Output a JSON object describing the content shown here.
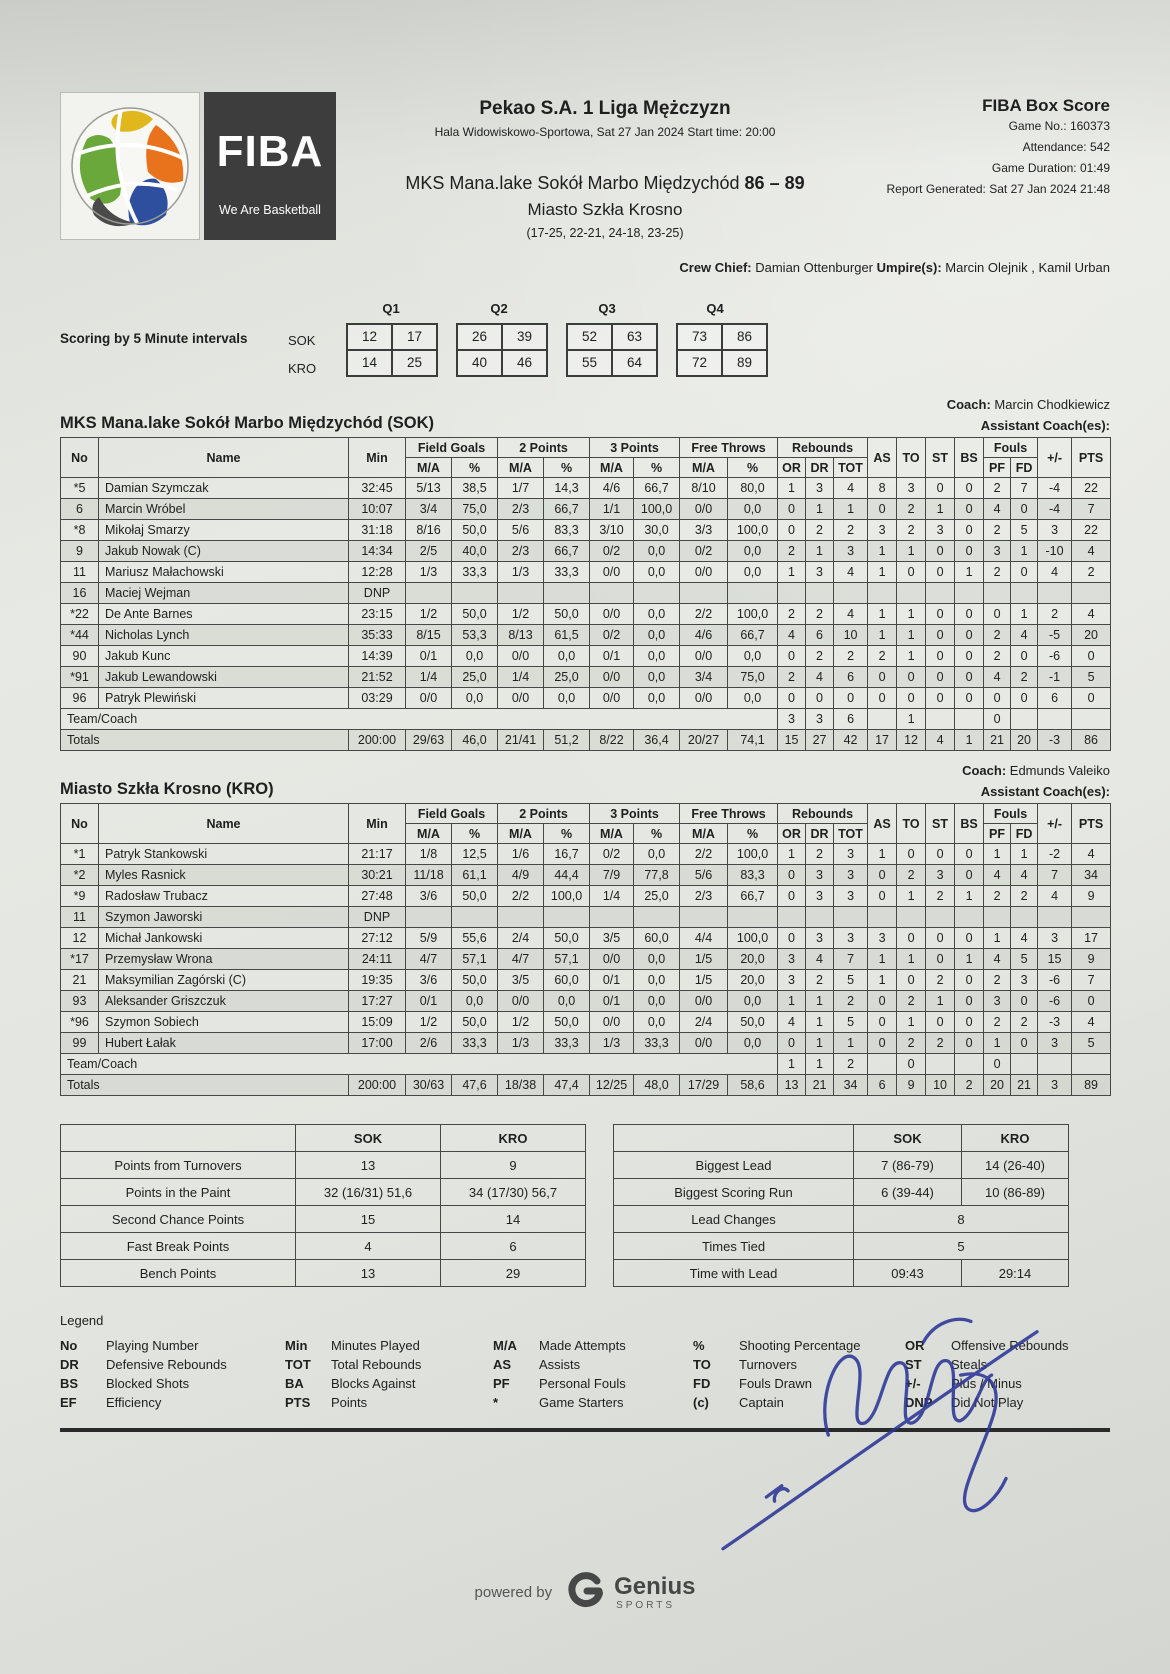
{
  "colors": {
    "paper": "#e4e6e1",
    "ink": "#222222",
    "signature_ink": "#2b3696",
    "fiba_box": "#3d3d3d"
  },
  "logo": {
    "fiba_text": "FIBA",
    "tagline": "We Are Basketball"
  },
  "header": {
    "league_title": "Pekao S.A. 1 Liga Mężczyzn",
    "venue_line": "Hala Widowiskowo-Sportowa, Sat 27 Jan 2024 Start time: 20:00",
    "home_team": "MKS Mana.lake Sokół Marbo Międzychód",
    "score": "86 – 89",
    "away_team": "Miasto Szkła Krosno",
    "quarter_scores": "(17-25, 22-21, 24-18, 23-25)",
    "box_score_title": "FIBA Box Score",
    "info_lines": [
      "Game No.: 160373",
      "Attendance: 542",
      "Game Duration: 01:49",
      "Report Generated: Sat 27 Jan 2024 21:48"
    ]
  },
  "crew": {
    "chief_label": "Crew Chief:",
    "chief_name": "Damian Ottenburger",
    "umpires_label": "Umpire(s):",
    "umpires": "Marcin Olejnik , Kamil Urban"
  },
  "intervals": {
    "label": "Scoring by 5 Minute intervals",
    "quarter_labels": [
      "Q1",
      "Q2",
      "Q3",
      "Q4"
    ],
    "rows": [
      {
        "team": "SOK",
        "values": [
          "12",
          "17",
          "26",
          "39",
          "52",
          "63",
          "73",
          "86"
        ]
      },
      {
        "team": "KRO",
        "values": [
          "14",
          "25",
          "40",
          "46",
          "55",
          "64",
          "72",
          "89"
        ]
      }
    ]
  },
  "table_headers": {
    "no": "No",
    "name": "Name",
    "min": "Min",
    "field_goals": "Field Goals",
    "two_points": "2 Points",
    "three_points": "3 Points",
    "free_throws": "Free Throws",
    "rebounds": "Rebounds",
    "fouls": "Fouls",
    "ma": "M/A",
    "pct": "%",
    "or": "OR",
    "dr": "DR",
    "tot": "TOT",
    "as": "AS",
    "to": "TO",
    "st": "ST",
    "bs": "BS",
    "pf": "PF",
    "fd": "FD",
    "pm": "+/-",
    "pts": "PTS"
  },
  "team_sok": {
    "coach_label": "Coach:",
    "coach_name": "Marcin Chodkiewicz",
    "assistant_label": "Assistant Coach(es):",
    "title": "MKS Mana.lake Sokół Marbo Międzychód (SOK)",
    "players": [
      {
        "no": "*5",
        "name": "Damian Szymczak",
        "min": "32:45",
        "fg": "5/13",
        "fgp": "38,5",
        "p2": "1/7",
        "p2p": "14,3",
        "p3": "4/6",
        "p3p": "66,7",
        "ft": "8/10",
        "ftp": "80,0",
        "or": "1",
        "dr": "3",
        "tot": "4",
        "as": "8",
        "to": "3",
        "st": "0",
        "bs": "0",
        "pf": "2",
        "fd": "7",
        "pm": "-4",
        "pts": "22"
      },
      {
        "no": "6",
        "name": "Marcin Wróbel",
        "min": "10:07",
        "fg": "3/4",
        "fgp": "75,0",
        "p2": "2/3",
        "p2p": "66,7",
        "p3": "1/1",
        "p3p": "100,0",
        "ft": "0/0",
        "ftp": "0,0",
        "or": "0",
        "dr": "1",
        "tot": "1",
        "as": "0",
        "to": "2",
        "st": "1",
        "bs": "0",
        "pf": "4",
        "fd": "0",
        "pm": "-4",
        "pts": "7"
      },
      {
        "no": "*8",
        "name": "Mikołaj Smarzy",
        "min": "31:18",
        "fg": "8/16",
        "fgp": "50,0",
        "p2": "5/6",
        "p2p": "83,3",
        "p3": "3/10",
        "p3p": "30,0",
        "ft": "3/3",
        "ftp": "100,0",
        "or": "0",
        "dr": "2",
        "tot": "2",
        "as": "3",
        "to": "2",
        "st": "3",
        "bs": "0",
        "pf": "2",
        "fd": "5",
        "pm": "3",
        "pts": "22"
      },
      {
        "no": "9",
        "name": "Jakub Nowak (C)",
        "min": "14:34",
        "fg": "2/5",
        "fgp": "40,0",
        "p2": "2/3",
        "p2p": "66,7",
        "p3": "0/2",
        "p3p": "0,0",
        "ft": "0/2",
        "ftp": "0,0",
        "or": "2",
        "dr": "1",
        "tot": "3",
        "as": "1",
        "to": "1",
        "st": "0",
        "bs": "0",
        "pf": "3",
        "fd": "1",
        "pm": "-10",
        "pts": "4"
      },
      {
        "no": "11",
        "name": "Mariusz Małachowski",
        "min": "12:28",
        "fg": "1/3",
        "fgp": "33,3",
        "p2": "1/3",
        "p2p": "33,3",
        "p3": "0/0",
        "p3p": "0,0",
        "ft": "0/0",
        "ftp": "0,0",
        "or": "1",
        "dr": "3",
        "tot": "4",
        "as": "1",
        "to": "0",
        "st": "0",
        "bs": "1",
        "pf": "2",
        "fd": "0",
        "pm": "4",
        "pts": "2"
      },
      {
        "no": "16",
        "name": "Maciej Wejman",
        "min": "DNP",
        "fg": "",
        "fgp": "",
        "p2": "",
        "p2p": "",
        "p3": "",
        "p3p": "",
        "ft": "",
        "ftp": "",
        "or": "",
        "dr": "",
        "tot": "",
        "as": "",
        "to": "",
        "st": "",
        "bs": "",
        "pf": "",
        "fd": "",
        "pm": "",
        "pts": ""
      },
      {
        "no": "*22",
        "name": "De Ante Barnes",
        "min": "23:15",
        "fg": "1/2",
        "fgp": "50,0",
        "p2": "1/2",
        "p2p": "50,0",
        "p3": "0/0",
        "p3p": "0,0",
        "ft": "2/2",
        "ftp": "100,0",
        "or": "2",
        "dr": "2",
        "tot": "4",
        "as": "1",
        "to": "1",
        "st": "0",
        "bs": "0",
        "pf": "0",
        "fd": "1",
        "pm": "2",
        "pts": "4"
      },
      {
        "no": "*44",
        "name": "Nicholas Lynch",
        "min": "35:33",
        "fg": "8/15",
        "fgp": "53,3",
        "p2": "8/13",
        "p2p": "61,5",
        "p3": "0/2",
        "p3p": "0,0",
        "ft": "4/6",
        "ftp": "66,7",
        "or": "4",
        "dr": "6",
        "tot": "10",
        "as": "1",
        "to": "1",
        "st": "0",
        "bs": "0",
        "pf": "2",
        "fd": "4",
        "pm": "-5",
        "pts": "20"
      },
      {
        "no": "90",
        "name": "Jakub Kunc",
        "min": "14:39",
        "fg": "0/1",
        "fgp": "0,0",
        "p2": "0/0",
        "p2p": "0,0",
        "p3": "0/1",
        "p3p": "0,0",
        "ft": "0/0",
        "ftp": "0,0",
        "or": "0",
        "dr": "2",
        "tot": "2",
        "as": "2",
        "to": "1",
        "st": "0",
        "bs": "0",
        "pf": "2",
        "fd": "0",
        "pm": "-6",
        "pts": "0"
      },
      {
        "no": "*91",
        "name": "Jakub Lewandowski",
        "min": "21:52",
        "fg": "1/4",
        "fgp": "25,0",
        "p2": "1/4",
        "p2p": "25,0",
        "p3": "0/0",
        "p3p": "0,0",
        "ft": "3/4",
        "ftp": "75,0",
        "or": "2",
        "dr": "4",
        "tot": "6",
        "as": "0",
        "to": "0",
        "st": "0",
        "bs": "0",
        "pf": "4",
        "fd": "2",
        "pm": "-1",
        "pts": "5"
      },
      {
        "no": "96",
        "name": "Patryk Plewiński",
        "min": "03:29",
        "fg": "0/0",
        "fgp": "0,0",
        "p2": "0/0",
        "p2p": "0,0",
        "p3": "0/0",
        "p3p": "0,0",
        "ft": "0/0",
        "ftp": "0,0",
        "or": "0",
        "dr": "0",
        "tot": "0",
        "as": "0",
        "to": "0",
        "st": "0",
        "bs": "0",
        "pf": "0",
        "fd": "0",
        "pm": "6",
        "pts": "0"
      }
    ],
    "team_row": {
      "label": "Team/Coach",
      "or": "3",
      "dr": "3",
      "tot": "6",
      "to": "1",
      "pf": "0"
    },
    "totals": {
      "label": "Totals",
      "min": "200:00",
      "fg": "29/63",
      "fgp": "46,0",
      "p2": "21/41",
      "p2p": "51,2",
      "p3": "8/22",
      "p3p": "36,4",
      "ft": "20/27",
      "ftp": "74,1",
      "or": "15",
      "dr": "27",
      "tot": "42",
      "as": "17",
      "to": "12",
      "st": "4",
      "bs": "1",
      "pf": "21",
      "fd": "20",
      "pm": "-3",
      "pts": "86"
    }
  },
  "team_kro": {
    "coach_label": "Coach:",
    "coach_name": "Edmunds Valeiko",
    "assistant_label": "Assistant Coach(es):",
    "title": "Miasto Szkła Krosno (KRO)",
    "players": [
      {
        "no": "*1",
        "name": "Patryk Stankowski",
        "min": "21:17",
        "fg": "1/8",
        "fgp": "12,5",
        "p2": "1/6",
        "p2p": "16,7",
        "p3": "0/2",
        "p3p": "0,0",
        "ft": "2/2",
        "ftp": "100,0",
        "or": "1",
        "dr": "2",
        "tot": "3",
        "as": "1",
        "to": "0",
        "st": "0",
        "bs": "0",
        "pf": "1",
        "fd": "1",
        "pm": "-2",
        "pts": "4"
      },
      {
        "no": "*2",
        "name": "Myles Rasnick",
        "min": "30:21",
        "fg": "11/18",
        "fgp": "61,1",
        "p2": "4/9",
        "p2p": "44,4",
        "p3": "7/9",
        "p3p": "77,8",
        "ft": "5/6",
        "ftp": "83,3",
        "or": "0",
        "dr": "3",
        "tot": "3",
        "as": "0",
        "to": "2",
        "st": "3",
        "bs": "0",
        "pf": "4",
        "fd": "4",
        "pm": "7",
        "pts": "34"
      },
      {
        "no": "*9",
        "name": "Radosław Trubacz",
        "min": "27:48",
        "fg": "3/6",
        "fgp": "50,0",
        "p2": "2/2",
        "p2p": "100,0",
        "p3": "1/4",
        "p3p": "25,0",
        "ft": "2/3",
        "ftp": "66,7",
        "or": "0",
        "dr": "3",
        "tot": "3",
        "as": "0",
        "to": "1",
        "st": "2",
        "bs": "1",
        "pf": "2",
        "fd": "2",
        "pm": "4",
        "pts": "9"
      },
      {
        "no": "11",
        "name": "Szymon Jaworski",
        "min": "DNP",
        "fg": "",
        "fgp": "",
        "p2": "",
        "p2p": "",
        "p3": "",
        "p3p": "",
        "ft": "",
        "ftp": "",
        "or": "",
        "dr": "",
        "tot": "",
        "as": "",
        "to": "",
        "st": "",
        "bs": "",
        "pf": "",
        "fd": "",
        "pm": "",
        "pts": ""
      },
      {
        "no": "12",
        "name": "Michał Jankowski",
        "min": "27:12",
        "fg": "5/9",
        "fgp": "55,6",
        "p2": "2/4",
        "p2p": "50,0",
        "p3": "3/5",
        "p3p": "60,0",
        "ft": "4/4",
        "ftp": "100,0",
        "or": "0",
        "dr": "3",
        "tot": "3",
        "as": "3",
        "to": "0",
        "st": "0",
        "bs": "0",
        "pf": "1",
        "fd": "4",
        "pm": "3",
        "pts": "17"
      },
      {
        "no": "*17",
        "name": "Przemysław Wrona",
        "min": "24:11",
        "fg": "4/7",
        "fgp": "57,1",
        "p2": "4/7",
        "p2p": "57,1",
        "p3": "0/0",
        "p3p": "0,0",
        "ft": "1/5",
        "ftp": "20,0",
        "or": "3",
        "dr": "4",
        "tot": "7",
        "as": "1",
        "to": "1",
        "st": "0",
        "bs": "1",
        "pf": "4",
        "fd": "5",
        "pm": "15",
        "pts": "9"
      },
      {
        "no": "21",
        "name": "Maksymilian Zagórski (C)",
        "min": "19:35",
        "fg": "3/6",
        "fgp": "50,0",
        "p2": "3/5",
        "p2p": "60,0",
        "p3": "0/1",
        "p3p": "0,0",
        "ft": "1/5",
        "ftp": "20,0",
        "or": "3",
        "dr": "2",
        "tot": "5",
        "as": "1",
        "to": "0",
        "st": "2",
        "bs": "0",
        "pf": "2",
        "fd": "3",
        "pm": "-6",
        "pts": "7"
      },
      {
        "no": "93",
        "name": "Aleksander Griszczuk",
        "min": "17:27",
        "fg": "0/1",
        "fgp": "0,0",
        "p2": "0/0",
        "p2p": "0,0",
        "p3": "0/1",
        "p3p": "0,0",
        "ft": "0/0",
        "ftp": "0,0",
        "or": "1",
        "dr": "1",
        "tot": "2",
        "as": "0",
        "to": "2",
        "st": "1",
        "bs": "0",
        "pf": "3",
        "fd": "0",
        "pm": "-6",
        "pts": "0"
      },
      {
        "no": "*96",
        "name": "Szymon Sobiech",
        "min": "15:09",
        "fg": "1/2",
        "fgp": "50,0",
        "p2": "1/2",
        "p2p": "50,0",
        "p3": "0/0",
        "p3p": "0,0",
        "ft": "2/4",
        "ftp": "50,0",
        "or": "4",
        "dr": "1",
        "tot": "5",
        "as": "0",
        "to": "1",
        "st": "0",
        "bs": "0",
        "pf": "2",
        "fd": "2",
        "pm": "-3",
        "pts": "4"
      },
      {
        "no": "99",
        "name": "Hubert Łałak",
        "min": "17:00",
        "fg": "2/6",
        "fgp": "33,3",
        "p2": "1/3",
        "p2p": "33,3",
        "p3": "1/3",
        "p3p": "33,3",
        "ft": "0/0",
        "ftp": "0,0",
        "or": "0",
        "dr": "1",
        "tot": "1",
        "as": "0",
        "to": "2",
        "st": "2",
        "bs": "0",
        "pf": "1",
        "fd": "0",
        "pm": "3",
        "pts": "5"
      }
    ],
    "team_row": {
      "label": "Team/Coach",
      "or": "1",
      "dr": "1",
      "tot": "2",
      "to": "0",
      "pf": "0"
    },
    "totals": {
      "label": "Totals",
      "min": "200:00",
      "fg": "30/63",
      "fgp": "47,6",
      "p2": "18/38",
      "p2p": "47,4",
      "p3": "12/25",
      "p3p": "48,0",
      "ft": "17/29",
      "ftp": "58,6",
      "or": "13",
      "dr": "21",
      "tot": "34",
      "as": "6",
      "to": "9",
      "st": "10",
      "bs": "2",
      "pf": "20",
      "fd": "21",
      "pm": "3",
      "pts": "89"
    }
  },
  "summary_left": {
    "col_sok": "SOK",
    "col_kro": "KRO",
    "rows": [
      {
        "label": "Points from Turnovers",
        "sok": "13",
        "kro": "9"
      },
      {
        "label": "Points in the Paint",
        "sok": "32 (16/31) 51,6",
        "kro": "34 (17/30) 56,7"
      },
      {
        "label": "Second Chance Points",
        "sok": "15",
        "kro": "14"
      },
      {
        "label": "Fast Break Points",
        "sok": "4",
        "kro": "6"
      },
      {
        "label": "Bench Points",
        "sok": "13",
        "kro": "29"
      }
    ]
  },
  "summary_right": {
    "col_sok": "SOK",
    "col_kro": "KRO",
    "rows": [
      {
        "label": "Biggest Lead",
        "sok": "7 (86-79)",
        "kro": "14 (26-40)"
      },
      {
        "label": "Biggest Scoring Run",
        "sok": "6 (39-44)",
        "kro": "10 (86-89)"
      },
      {
        "label": "Lead Changes",
        "both": "8"
      },
      {
        "label": "Times Tied",
        "both": "5"
      },
      {
        "label": "Time with Lead",
        "sok": "09:43",
        "kro": "29:14"
      }
    ]
  },
  "legend": {
    "title": "Legend",
    "columns": [
      [
        [
          "No",
          "Playing Number"
        ],
        [
          "DR",
          "Defensive Rebounds"
        ],
        [
          "BS",
          "Blocked Shots"
        ],
        [
          "EF",
          "Efficiency"
        ]
      ],
      [
        [
          "Min",
          "Minutes Played"
        ],
        [
          "TOT",
          "Total Rebounds"
        ],
        [
          "BA",
          "Blocks Against"
        ],
        [
          "PTS",
          "Points"
        ]
      ],
      [
        [
          "M/A",
          "Made Attempts"
        ],
        [
          "AS",
          "Assists"
        ],
        [
          "PF",
          "Personal Fouls"
        ],
        [
          "*",
          "Game Starters"
        ]
      ],
      [
        [
          "%",
          "Shooting Percentage"
        ],
        [
          "TO",
          "Turnovers"
        ],
        [
          "FD",
          "Fouls Drawn"
        ],
        [
          "(c)",
          "Captain"
        ]
      ],
      [
        [
          "OR",
          "Offensive Rebounds"
        ],
        [
          "ST",
          "Steals"
        ],
        [
          "+/-",
          "Plus / Minus"
        ],
        [
          "DNP",
          "Did Not Play"
        ]
      ]
    ]
  },
  "footer": {
    "powered_by": "powered by",
    "brand": "Genius",
    "brand_sub": "SPORTS"
  }
}
